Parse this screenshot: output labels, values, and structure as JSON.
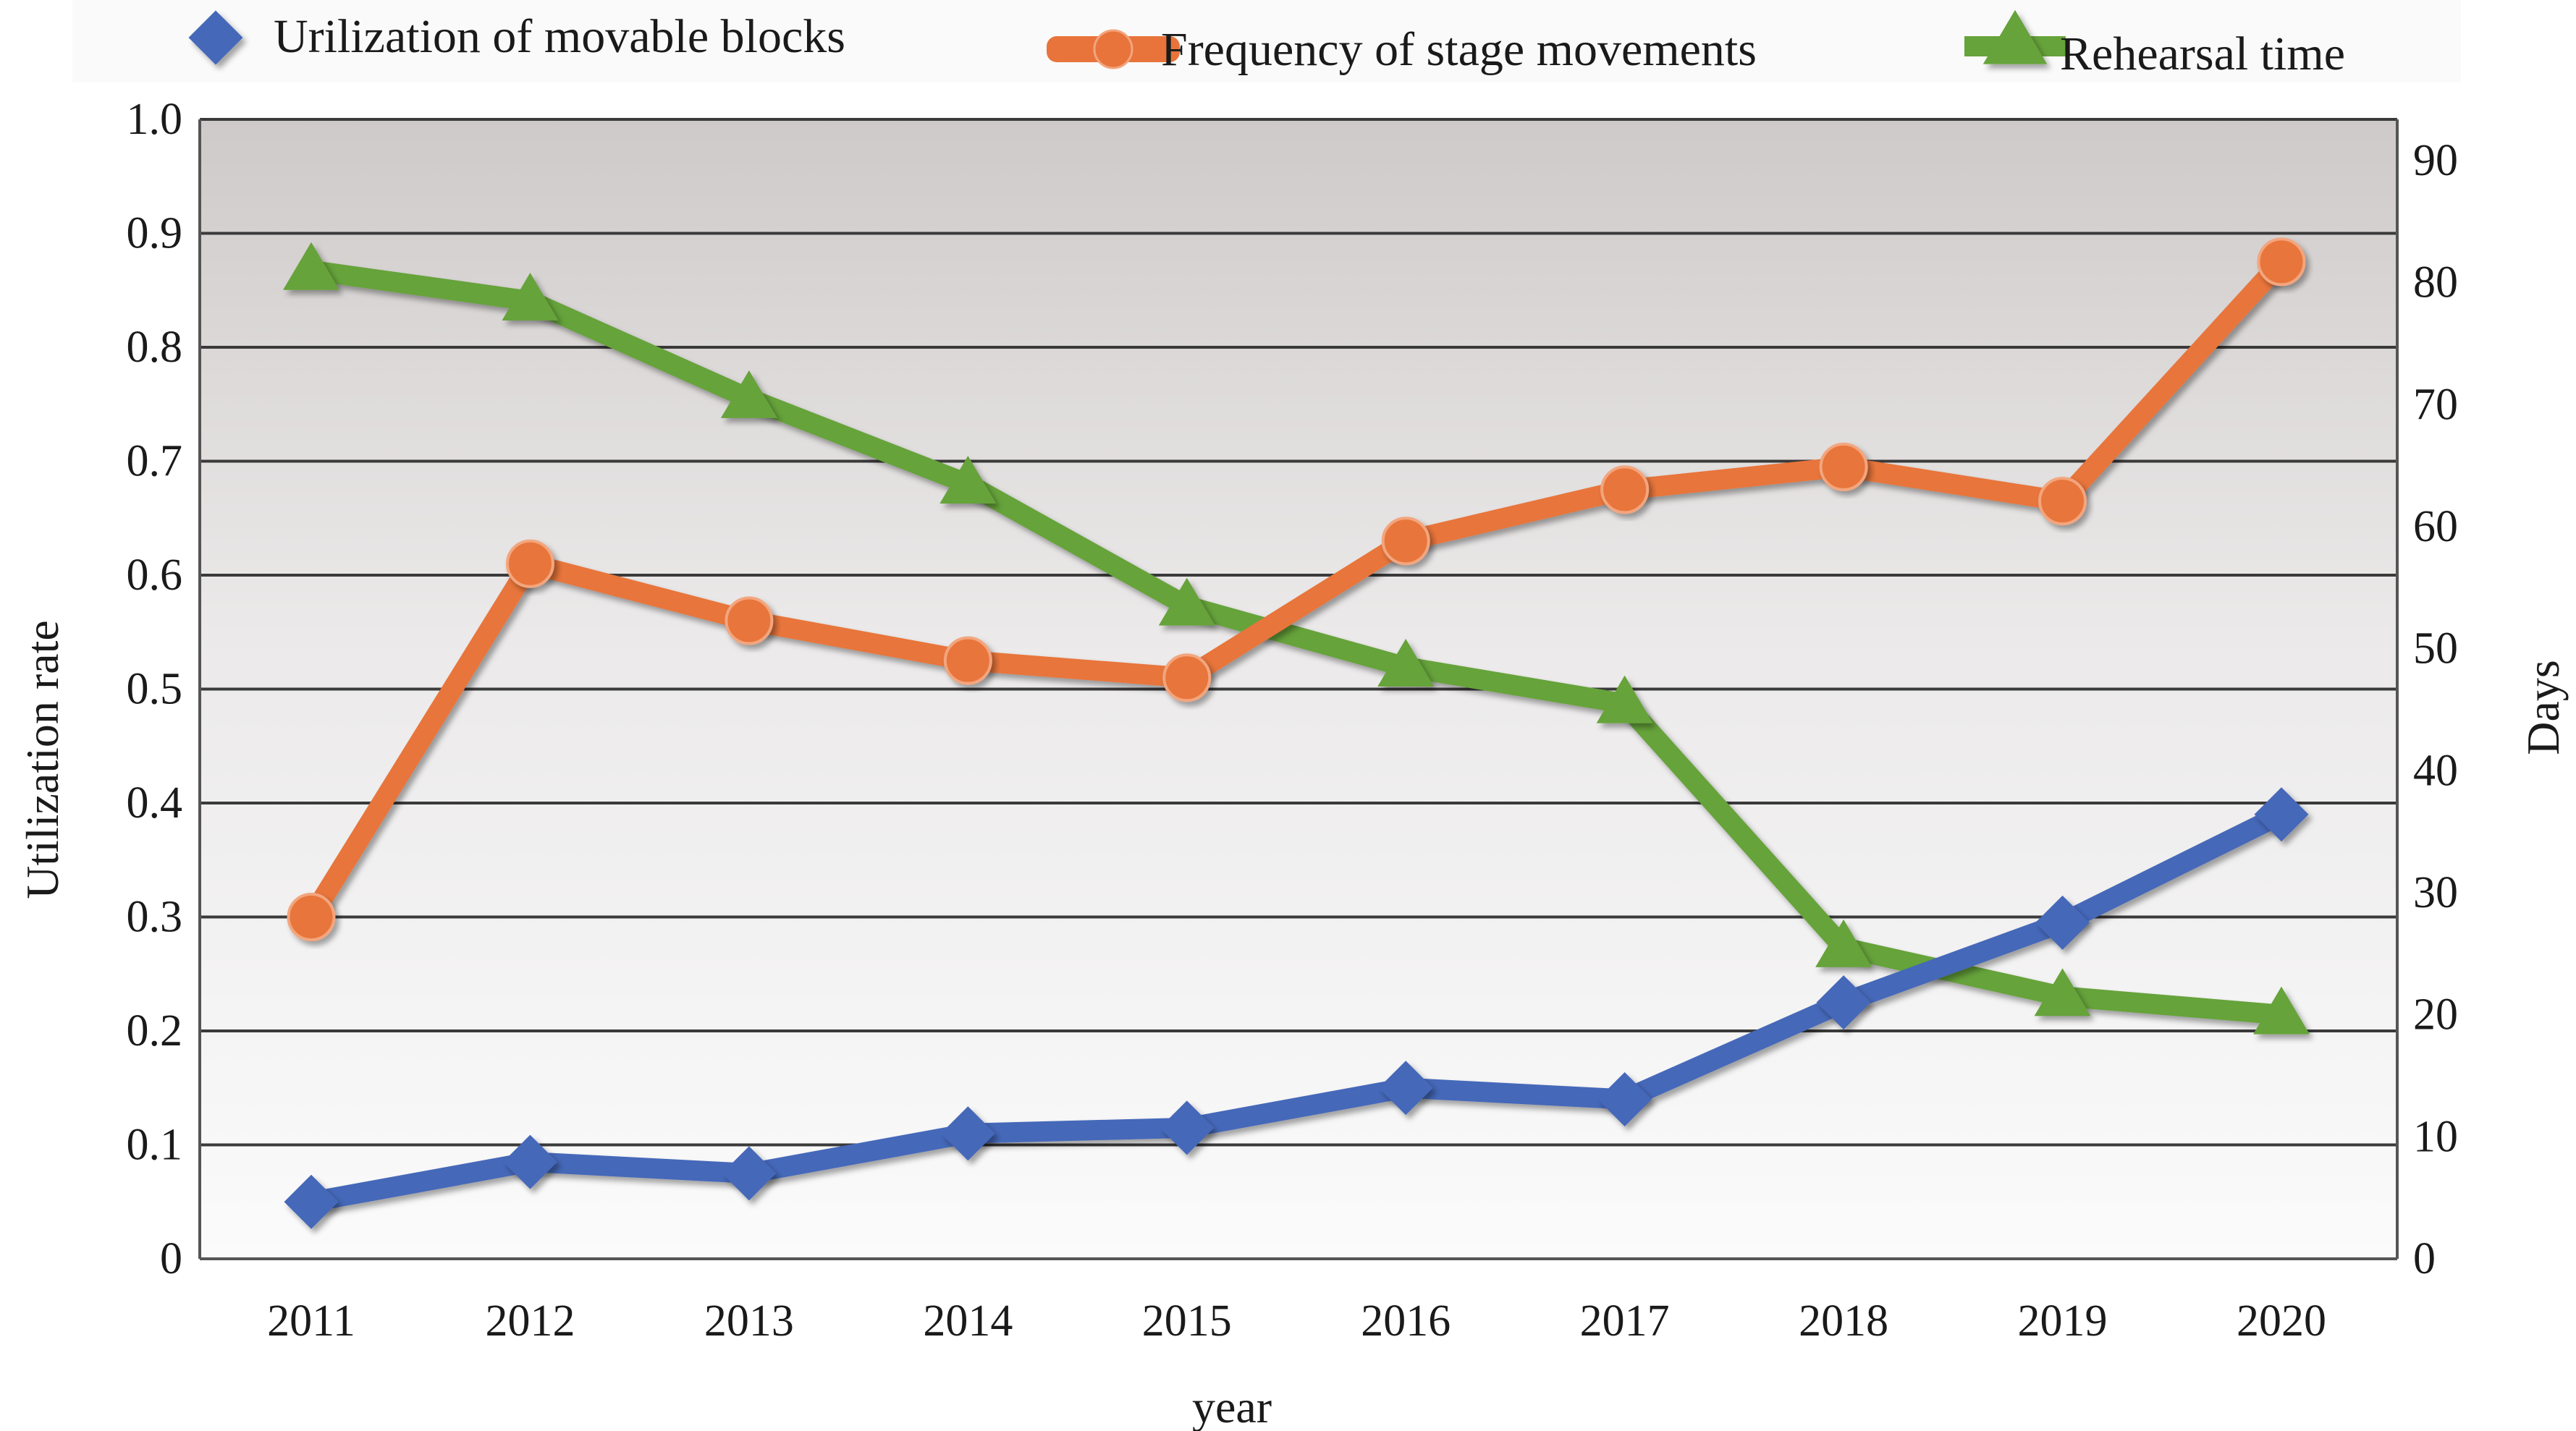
{
  "chart_data": {
    "type": "line",
    "categories": [
      "2011",
      "2012",
      "2013",
      "2014",
      "2015",
      "2016",
      "2017",
      "2018",
      "2019",
      "2020"
    ],
    "xlabel": "year",
    "ylabel": "Utilization rate",
    "y2label": "Days",
    "ylim": [
      0,
      1.0
    ],
    "y2lim": [
      0,
      90
    ],
    "yticks": [
      "0",
      "0.1",
      "0.2",
      "0.3",
      "0.4",
      "0.5",
      "0.6",
      "0.7",
      "0.8",
      "0.9",
      "1.0"
    ],
    "y2ticks": [
      "0",
      "10",
      "20",
      "30",
      "40",
      "50",
      "60",
      "70",
      "80",
      "90"
    ],
    "grid": true,
    "legend_position": "top",
    "series": [
      {
        "name": "Urilization of movable blocks",
        "axis": "left",
        "marker": "diamond",
        "color": "#4468b9",
        "values": [
          0.05,
          0.085,
          0.075,
          0.11,
          0.115,
          0.15,
          0.14,
          0.225,
          0.295,
          0.39
        ]
      },
      {
        "name": "Frequency of stage movements",
        "axis": "left",
        "marker": "circle",
        "color": "#e8743b",
        "values": [
          0.3,
          0.61,
          0.56,
          0.525,
          0.51,
          0.63,
          0.675,
          0.695,
          0.665,
          0.875
        ]
      },
      {
        "name": "Rehearsal time",
        "axis": "right",
        "marker": "triangle",
        "color": "#66a33a",
        "values": [
          81,
          78.5,
          70.5,
          63.5,
          53.5,
          48.5,
          45.5,
          25.5,
          21.5,
          20
        ]
      }
    ]
  }
}
